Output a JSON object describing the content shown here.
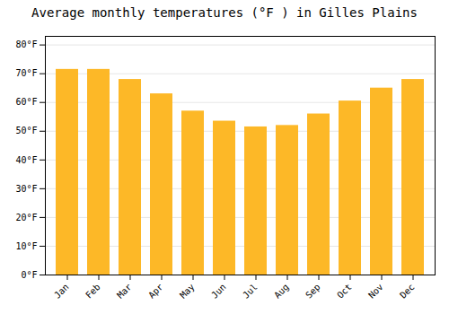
{
  "chart_data": {
    "type": "bar",
    "title": "Average monthly temperatures (°F ) in Gilles Plains",
    "categories": [
      "Jan",
      "Feb",
      "Mar",
      "Apr",
      "May",
      "Jun",
      "Jul",
      "Aug",
      "Sep",
      "Oct",
      "Nov",
      "Dec"
    ],
    "values": [
      71.5,
      71.5,
      68,
      63,
      57,
      53.5,
      51.5,
      52,
      56,
      60.5,
      65,
      68
    ],
    "color": "#FDB827",
    "ylim": [
      0,
      83
    ],
    "yticks": [
      {
        "value": 0,
        "label": "0°F"
      },
      {
        "value": 10,
        "label": "10°F"
      },
      {
        "value": 20,
        "label": "20°F"
      },
      {
        "value": 30,
        "label": "30°F"
      },
      {
        "value": 40,
        "label": "40°F"
      },
      {
        "value": 50,
        "label": "50°F"
      },
      {
        "value": 60,
        "label": "60°F"
      },
      {
        "value": 70,
        "label": "70°F"
      },
      {
        "value": 80,
        "label": "80°F"
      }
    ],
    "grid": true
  }
}
